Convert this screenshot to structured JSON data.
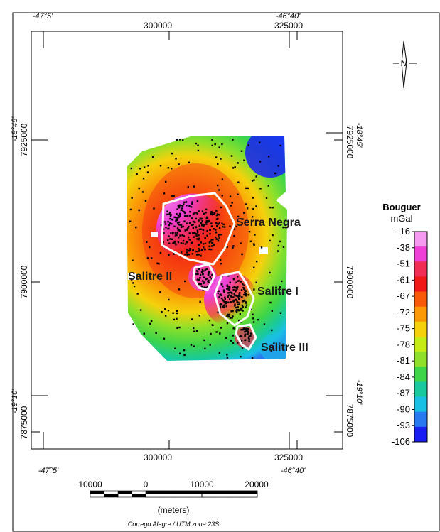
{
  "map": {
    "lon_labels": {
      "west": "-47°5'",
      "east": "-46°40'"
    },
    "lat_labels": {
      "north": "-18°45'",
      "south": "-19°10'"
    },
    "utm_x_labels": [
      "300000",
      "325000"
    ],
    "utm_y_labels": {
      "north": "7925000",
      "mid": "7900000",
      "south": "7875000"
    },
    "region_labels": {
      "serra_negra": "Serra Negra",
      "salitre_i": "Salitre I",
      "salitre_ii": "Salitre II",
      "salitre_iii": "Salitre III"
    },
    "north_arrow": "N"
  },
  "legend": {
    "title": "Bouguer",
    "unit": "mGal",
    "ticks": [
      "-16",
      "-38",
      "-51",
      "-61",
      "-67",
      "-72",
      "-75",
      "-78",
      "-81",
      "-84",
      "-87",
      "-90",
      "-93",
      "-106"
    ],
    "colors": [
      "#f59af0",
      "#ee3fd6",
      "#f22d55",
      "#f11818",
      "#f95a0a",
      "#fb9a06",
      "#f5d10c",
      "#c6ea14",
      "#8ee02a",
      "#3ed548",
      "#18c99d",
      "#1ac0e4",
      "#2878f0",
      "#1a1ef2"
    ]
  },
  "scale": {
    "labels": [
      "10000",
      "0",
      "10000",
      "20000"
    ],
    "unit": "(meters)",
    "projection": "Corrego Alegre / UTM zone 23S"
  }
}
